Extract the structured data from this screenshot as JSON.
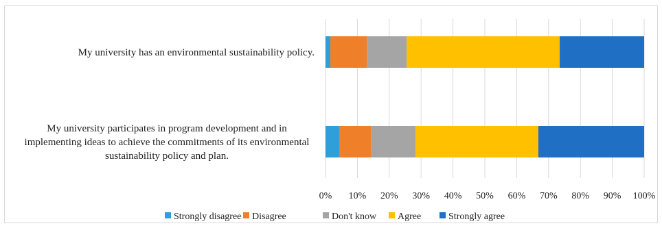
{
  "chart_data": {
    "type": "bar",
    "orientation": "horizontal",
    "stacked": true,
    "percent": true,
    "categories": [
      "My university has an environmental sustainability policy.",
      "My university participates in program development and in implementing ideas to achieve the commitments of its environmental sustainability policy and plan."
    ],
    "category_lines": [
      [
        "My university has an environmental sustainability policy."
      ],
      [
        "My university participates in program development and in",
        "implementing ideas to achieve the commitments of its environmental",
        "sustainability policy and plan."
      ]
    ],
    "series": [
      {
        "name": "Strongly disagree",
        "color": "#2e9fd8",
        "values": [
          1.5,
          4.3
        ]
      },
      {
        "name": "Disagree",
        "color": "#f07f2a",
        "values": [
          11.5,
          10.0
        ]
      },
      {
        "name": "Don't know",
        "color": "#a5a5a5",
        "values": [
          12.5,
          14.0
        ]
      },
      {
        "name": "Agree",
        "color": "#ffc000",
        "values": [
          48.0,
          38.5
        ]
      },
      {
        "name": "Strongly agree",
        "color": "#1f6fc4",
        "values": [
          26.5,
          33.2
        ]
      }
    ],
    "xlim": [
      0,
      100
    ],
    "x_ticks": [
      "0%",
      "10%",
      "20%",
      "30%",
      "40%",
      "50%",
      "60%",
      "70%",
      "80%",
      "90%",
      "100%"
    ],
    "gridlines": true,
    "legend_position": "bottom"
  }
}
